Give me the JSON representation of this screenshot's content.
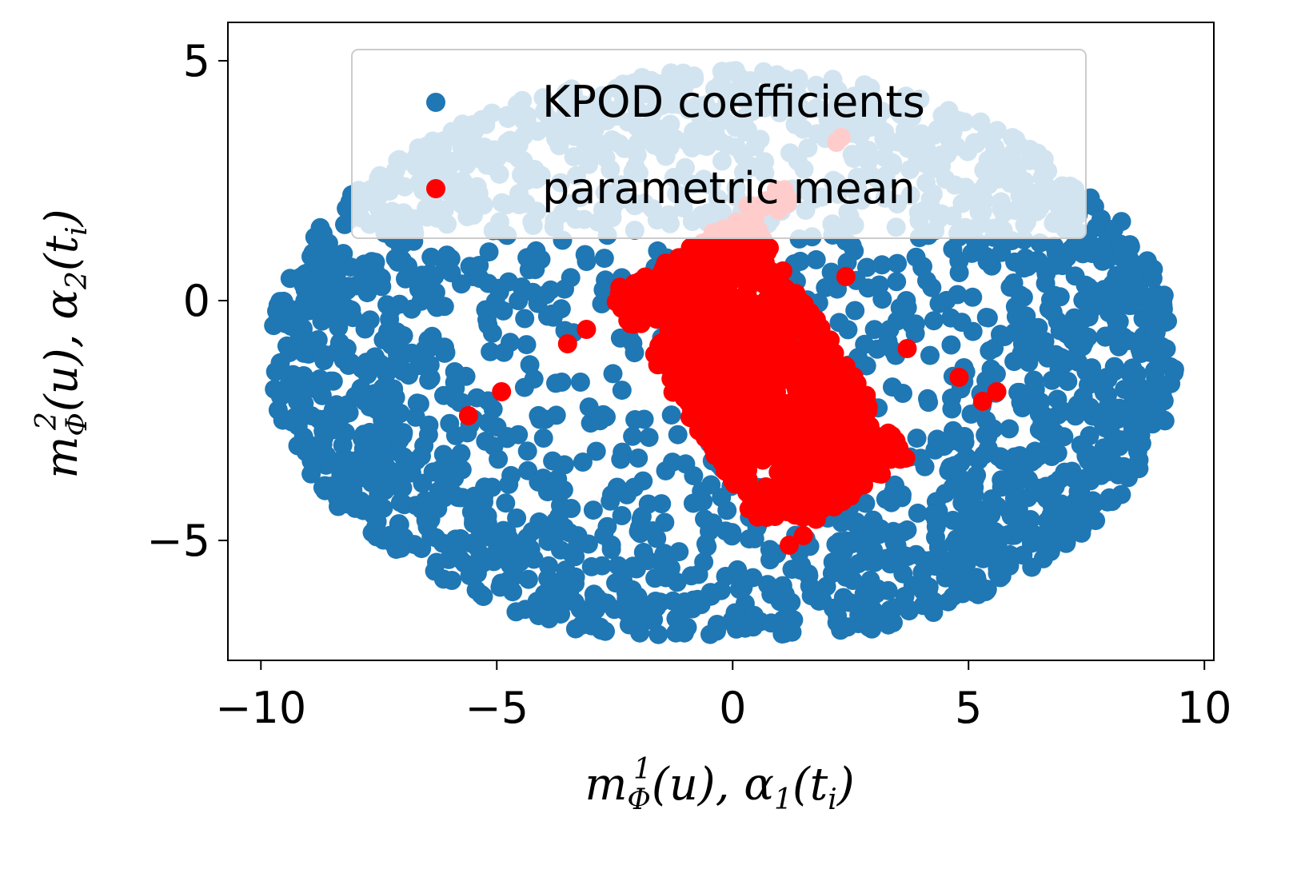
{
  "chart_data": {
    "type": "scatter",
    "title": "",
    "xlabel": "m_Φ^1(u), α_1(t_i)",
    "ylabel": "m_Φ^2(u), α_2(t_i)",
    "xlim": [
      -10.7,
      10.2
    ],
    "ylim": [
      -7.5,
      5.8
    ],
    "xticks": [
      -10,
      -5,
      0,
      5,
      10
    ],
    "xtick_labels": [
      "−10",
      "−5",
      "0",
      "5",
      "10"
    ],
    "yticks": [
      5,
      0,
      -5
    ],
    "ytick_labels": [
      "5",
      "0",
      "−5"
    ],
    "grid": false,
    "legend_position": "top-right",
    "series": [
      {
        "name": "KPOD coefficients",
        "color": "#1f77b4",
        "pattern": "half-ring cloud, x in [-9.8, 9.4], y in [-7.0, 5.3]",
        "seed": 7,
        "count": 2200
      },
      {
        "name": "parametric mean",
        "color": "#ff0000",
        "pattern": "elongated band from (-2.5, -0.1) to (1.2, 2.2) and dense block around (1.5, -2.5)",
        "seed": 11,
        "count": 900,
        "outliers": [
          {
            "x": -5.6,
            "y": -2.4
          },
          {
            "x": -4.9,
            "y": -1.9
          },
          {
            "x": -3.5,
            "y": -0.9
          },
          {
            "x": -3.1,
            "y": -0.6
          },
          {
            "x": -0.3,
            "y": -2.1
          },
          {
            "x": 0.9,
            "y": -4.5
          },
          {
            "x": 1.2,
            "y": -5.1
          },
          {
            "x": 1.5,
            "y": -4.9
          },
          {
            "x": 2.4,
            "y": 0.5
          },
          {
            "x": 3.7,
            "y": -1.0
          },
          {
            "x": 4.8,
            "y": -1.6
          },
          {
            "x": 5.3,
            "y": -2.1
          },
          {
            "x": 5.6,
            "y": -1.9
          },
          {
            "x": 2.2,
            "y": 3.3
          },
          {
            "x": 2.3,
            "y": 3.4
          }
        ]
      }
    ]
  }
}
